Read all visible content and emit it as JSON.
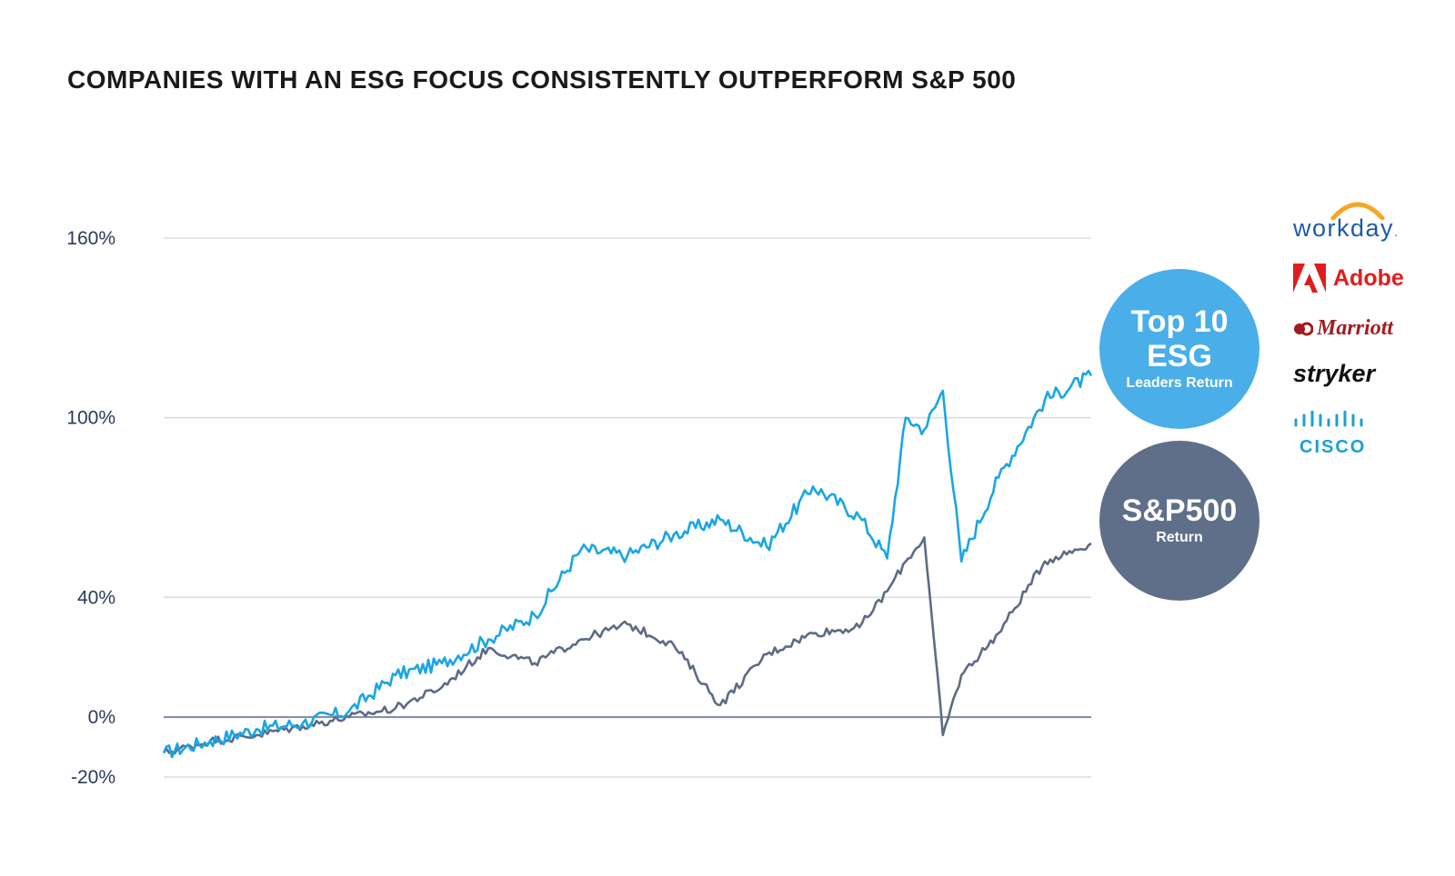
{
  "title": "COMPANIES WITH AN ESG FOCUS CONSISTENTLY OUTPERFORM S&P 500",
  "bubbles": {
    "esg": {
      "line1": "Top 10",
      "line2": "ESG",
      "line3": "Leaders Return",
      "color": "#4aaee8"
    },
    "sp500": {
      "line1": "S&P500",
      "line2": "Return",
      "color": "#5f6f89"
    }
  },
  "logos": {
    "workday": "workday",
    "workday_mark": ".",
    "adobe": "Adobe",
    "marriott": "Marriott",
    "stryker": "stryker",
    "cisco": "CISCO"
  },
  "colors": {
    "esg_line": "#1aa6e4",
    "sp_line": "#5d6b84",
    "workday_arc": "#f6a623",
    "adobe": "#e01d1d",
    "marriott": "#a21b1f",
    "cisco": "#1ba0d7"
  },
  "chart_data": {
    "type": "line",
    "title": "COMPANIES WITH AN ESG FOCUS CONSISTENTLY OUTPERFORM S&P 500",
    "xlabel": "",
    "ylabel": "",
    "ylim": [
      -20,
      160
    ],
    "yticks": [
      {
        "value": 160,
        "label": "160%"
      },
      {
        "value": 100,
        "label": "100%"
      },
      {
        "value": 40,
        "label": "40%"
      },
      {
        "value": 0,
        "label": "0%"
      },
      {
        "value": -20,
        "label": "-20%"
      }
    ],
    "grid": true,
    "x": [
      0,
      5,
      10,
      15,
      20,
      25,
      30,
      35,
      40,
      45,
      50,
      55,
      60,
      65,
      70,
      75,
      78,
      80,
      82,
      84,
      86,
      90,
      95,
      100
    ],
    "series": [
      {
        "name": "Top 10 ESG Leaders Return",
        "values": [
          -12,
          -8,
          -4,
          -2,
          2,
          14,
          18,
          26,
          34,
          56,
          54,
          61,
          66,
          57,
          77,
          67,
          53,
          100,
          96,
          109,
          52,
          80,
          106,
          114
        ]
      },
      {
        "name": "S&P500 Return",
        "values": [
          -12,
          -8,
          -6,
          -3,
          0,
          3,
          10,
          23,
          18,
          26,
          31,
          24,
          4,
          21,
          28,
          30,
          42,
          52,
          60,
          -6,
          14,
          28,
          52,
          58
        ]
      }
    ]
  }
}
